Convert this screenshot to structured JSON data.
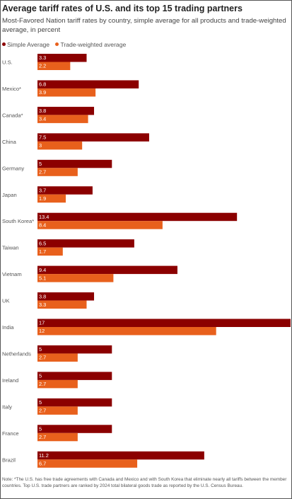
{
  "title": "Average tariff rates of U.S. and its top 15 trading partners",
  "subtitle": "Most-Favored Nation tariff rates by country, simple average for all products and trade-weighted average, in percent",
  "legend": {
    "simple": "Simple Average",
    "trade": "Trade-weighted average"
  },
  "colors": {
    "simple": "#8b0000",
    "trade": "#e8601c"
  },
  "note": "Note: *The U.S. has free trade agreements with Canada and Mexico and with South Korea that eliminate nearly all tariffs between the member countries. Top U.S. trade partners are ranked by 2024 total bilateral goods trade as reported by the U.S. Census Bureau.",
  "chart_data": {
    "type": "bar",
    "orientation": "horizontal",
    "title": "Average tariff rates of U.S. and its top 15 trading partners",
    "subtitle": "Most-Favored Nation tariff rates by country, simple average for all products and trade-weighted average, in percent",
    "categories": [
      "U.S.",
      "Mexico*",
      "Canada*",
      "China",
      "Germany",
      "Japan",
      "South Korea*",
      "Taiwan",
      "Vietnam",
      "UK",
      "India",
      "Netherlands",
      "Ireland",
      "Italy",
      "France",
      "Brazil"
    ],
    "series": [
      {
        "name": "Simple Average",
        "values": [
          3.3,
          6.8,
          3.8,
          7.5,
          5,
          3.7,
          13.4,
          6.5,
          9.4,
          3.8,
          17,
          5,
          5,
          5,
          5,
          11.2
        ],
        "labels": [
          "3.3",
          "6.8",
          "3.8",
          "7.5",
          "5",
          "3.7",
          "13.4",
          "6.5",
          "9.4",
          "3.8",
          "17",
          "5",
          "5",
          "5",
          "5",
          "11.2"
        ]
      },
      {
        "name": "Trade-weighted average",
        "values": [
          2.2,
          3.9,
          3.4,
          3,
          2.7,
          1.9,
          8.4,
          1.7,
          5.1,
          3.3,
          12,
          2.7,
          2.7,
          2.7,
          2.7,
          6.7
        ],
        "labels": [
          "2.2",
          "3.9",
          "3.4",
          "3",
          "2.7",
          "1.9",
          "8.4",
          "1.7",
          "5.1",
          "3.3",
          "12",
          "2.7",
          "2.7",
          "2.7",
          "2.7",
          "6.7"
        ]
      }
    ],
    "xlim": [
      0,
      17
    ],
    "grid": false,
    "legend_position": "top-left",
    "data_labels": "inside-bar-start"
  }
}
